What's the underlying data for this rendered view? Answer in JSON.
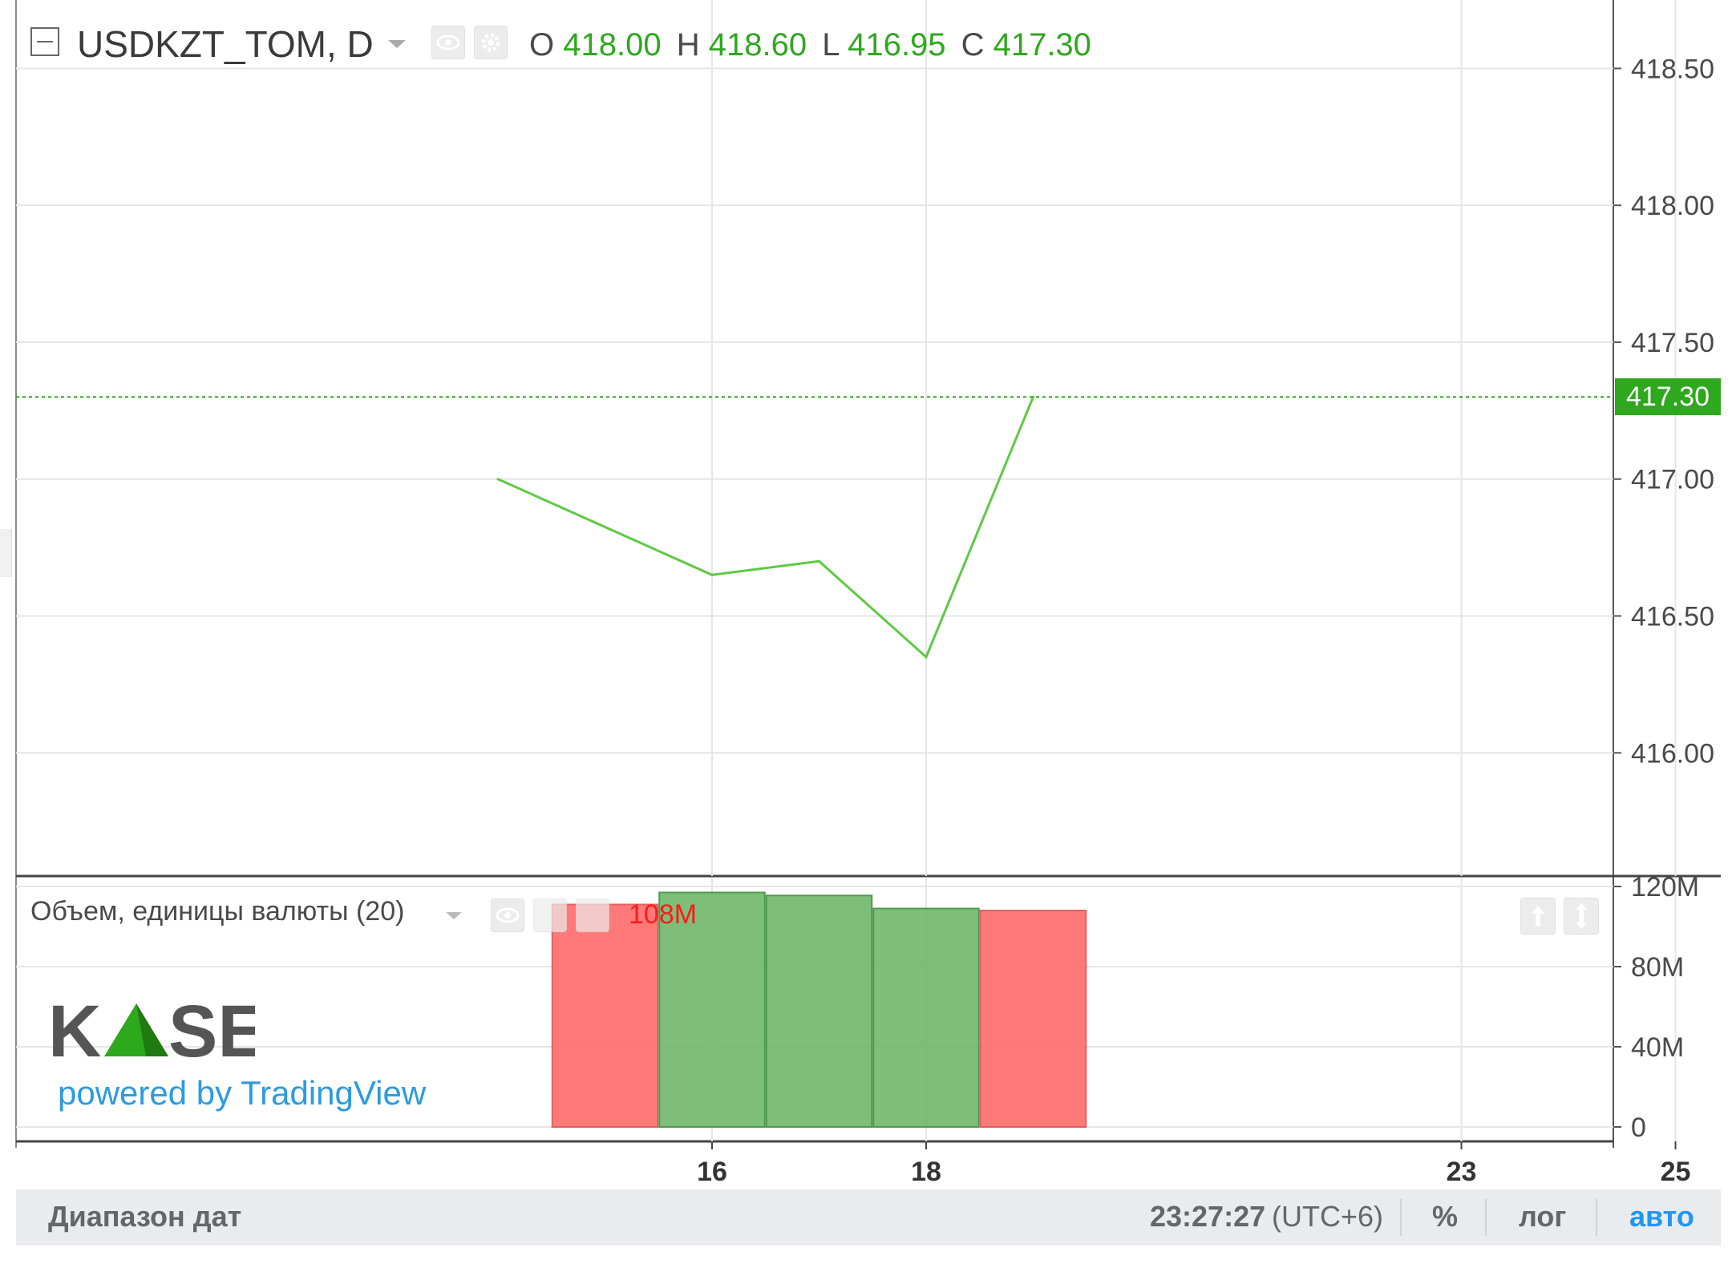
{
  "header": {
    "symbol": "USDKZT_TOM, D",
    "ohlc": {
      "o_label": "O",
      "o_value": "418.00",
      "h_label": "H",
      "h_value": "418.60",
      "l_label": "L",
      "l_value": "416.95",
      "c_label": "C",
      "c_value": "417.30"
    }
  },
  "volume_pane": {
    "title": "Объем, единицы валюты (20)",
    "last_value": "108M"
  },
  "logo": {
    "brand": "KASE",
    "powered_by": "powered by TradingView"
  },
  "footer": {
    "date_range": "Диапазон дат",
    "time": "23:27:27",
    "timezone": "(UTC+6)",
    "percent": "%",
    "log": "лог",
    "auto": "авто"
  },
  "colors": {
    "price_line": "#5fc944",
    "up_volume": "#6fb86b",
    "down_volume": "#ff6b6b",
    "last_price_badge": "#2ea81d",
    "auto_link": "#2196f3"
  },
  "chart_data": [
    {
      "type": "line",
      "x": [
        "14",
        "16",
        "17",
        "18",
        "19"
      ],
      "series": [
        {
          "values": [
            417.0,
            416.65,
            416.7,
            416.35,
            417.3
          ]
        }
      ],
      "y_ticks": [
        "418.50",
        "418.00",
        "417.50",
        "417.00",
        "416.50",
        "416.00"
      ],
      "ylim": [
        415.55,
        418.75
      ],
      "x_ticks": [
        "16",
        "18",
        "23",
        "25"
      ],
      "last_price": "417.30",
      "grid": true
    },
    {
      "type": "bar",
      "categories": [
        "15",
        "16",
        "17",
        "18",
        "19"
      ],
      "values": [
        111000000,
        117000000,
        115500000,
        109000000,
        108000000
      ],
      "direction": [
        "down",
        "up",
        "up",
        "up",
        "down"
      ],
      "y_ticks": [
        "120M",
        "80M",
        "40M",
        "0"
      ],
      "ylim": [
        0,
        120000000
      ],
      "grid": true
    }
  ]
}
